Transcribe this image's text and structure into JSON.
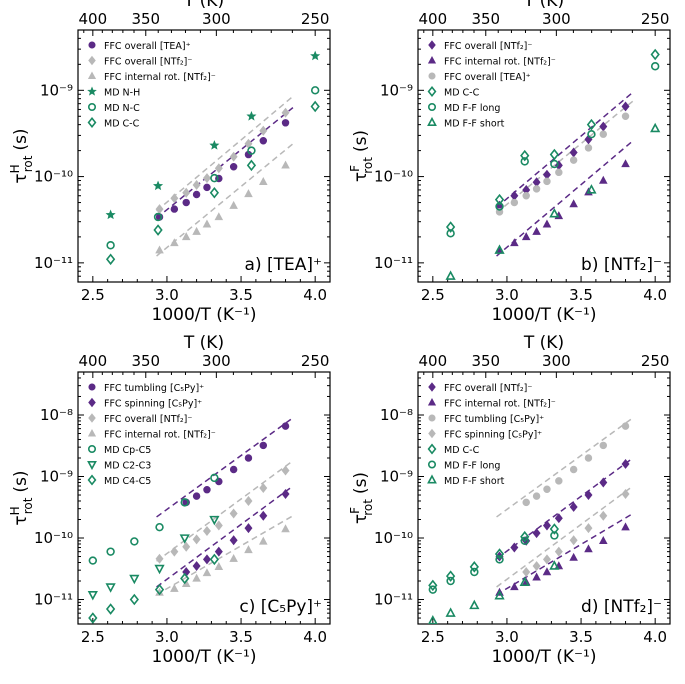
{
  "colors": {
    "purple": "#5b2a86",
    "gray": "#b8b8b8",
    "green": "#1a8a63"
  },
  "axes_text": {
    "x_bottom_title": "1000/T (K⁻¹)",
    "x_top_title": "T (K)",
    "y_title_H_sup": "H",
    "y_title_F_sup": "F",
    "y_title_base": "τ",
    "y_title_sub": "rot",
    "y_title_unit": "(s)"
  },
  "chart_data": [
    {
      "id": "a",
      "type": "scatter",
      "title": "a) [TEA]⁺",
      "xlabel": "1000/T (K⁻¹)",
      "ylabel": "τ_rot^H (s)",
      "x2label": "T (K)",
      "xlim": [
        2.4,
        4.1
      ],
      "ylim": [
        6e-12,
        5e-09
      ],
      "xticks": [
        "2.5",
        "3.0",
        "3.5",
        "4.0"
      ],
      "xtick_values": [
        2.5,
        3.0,
        3.5,
        4.0
      ],
      "yticks": [
        "10⁻¹¹",
        "10⁻¹⁰",
        "10⁻⁹"
      ],
      "ytick_values": [
        1e-11,
        1e-10,
        1e-09
      ],
      "top_ticks": [
        "400",
        "350",
        "300",
        "250"
      ],
      "top_tick_values": [
        400,
        350,
        300,
        250
      ],
      "legend": "top-left",
      "series": [
        {
          "name": "FFC overall [TEA]⁺",
          "marker": "circle",
          "color": "purple",
          "filled": true,
          "x": [
            2.95,
            3.05,
            3.13,
            3.2,
            3.27,
            3.35,
            3.45,
            3.55,
            3.65,
            3.8
          ],
          "y": [
            3.4e-11,
            4.2e-11,
            5e-11,
            6.2e-11,
            7.5e-11,
            9.5e-11,
            1.3e-10,
            1.8e-10,
            2.6e-10,
            4.2e-10
          ],
          "fit": {
            "x": [
              2.93,
              3.85
            ],
            "y": [
              3.3e-11,
              6.3e-10
            ]
          }
        },
        {
          "name": "FFC overall [NTf₂]⁻",
          "marker": "diamond",
          "color": "gray",
          "filled": true,
          "x": [
            2.95,
            3.05,
            3.13,
            3.2,
            3.27,
            3.35,
            3.45,
            3.55,
            3.65,
            3.8
          ],
          "y": [
            4.2e-11,
            5.6e-11,
            6.5e-11,
            8e-11,
            9.6e-11,
            1.25e-10,
            1.7e-10,
            2.4e-10,
            3.4e-10,
            5.5e-10
          ],
          "fit": {
            "x": [
              2.93,
              3.85
            ],
            "y": [
              4e-11,
              8.5e-10
            ]
          }
        },
        {
          "name": "FFC internal rot. [NTf₂]⁻",
          "marker": "triangle",
          "color": "gray",
          "filled": true,
          "x": [
            2.95,
            3.05,
            3.13,
            3.2,
            3.27,
            3.35,
            3.45,
            3.55,
            3.65,
            3.8
          ],
          "y": [
            1.4e-11,
            1.7e-11,
            2e-11,
            2.3e-11,
            2.8e-11,
            3.4e-11,
            4.6e-11,
            6.3e-11,
            8.7e-11,
            1.35e-10
          ],
          "fit": {
            "x": [
              2.93,
              3.85
            ],
            "y": [
              1.2e-11,
              2.4e-10
            ]
          }
        },
        {
          "name": "MD N-H",
          "marker": "star",
          "color": "green",
          "filled": true,
          "x": [
            2.62,
            2.94,
            3.32,
            3.57,
            4.0
          ],
          "y": [
            3.6e-11,
            7.8e-11,
            2.3e-10,
            5e-10,
            2.5e-09
          ]
        },
        {
          "name": "MD N-C",
          "marker": "circle",
          "color": "green",
          "filled": false,
          "x": [
            2.62,
            2.94,
            3.32,
            3.57,
            4.0
          ],
          "y": [
            1.6e-11,
            3.4e-11,
            9.6e-11,
            2e-10,
            1e-09
          ]
        },
        {
          "name": "MD C-C",
          "marker": "diamond",
          "color": "green",
          "filled": false,
          "x": [
            2.62,
            2.94,
            3.32,
            3.57,
            4.0
          ],
          "y": [
            1.1e-11,
            2.4e-11,
            6.5e-11,
            1.35e-10,
            6.5e-10
          ]
        }
      ]
    },
    {
      "id": "b",
      "type": "scatter",
      "title": "b) [NTf₂]⁻",
      "xlabel": "1000/T (K⁻¹)",
      "ylabel": "τ_rot^F (s)",
      "x2label": "T (K)",
      "xlim": [
        2.4,
        4.1
      ],
      "ylim": [
        6e-12,
        5e-09
      ],
      "xticks": [
        "2.5",
        "3.0",
        "3.5",
        "4.0"
      ],
      "xtick_values": [
        2.5,
        3.0,
        3.5,
        4.0
      ],
      "yticks": [
        "10⁻¹¹",
        "10⁻¹⁰",
        "10⁻⁹"
      ],
      "ytick_values": [
        1e-11,
        1e-10,
        1e-09
      ],
      "top_ticks": [
        "400",
        "350",
        "300",
        "250"
      ],
      "top_tick_values": [
        400,
        350,
        300,
        250
      ],
      "legend": "top-left",
      "series": [
        {
          "name": "FFC overall [NTf₂]⁻",
          "marker": "diamond",
          "color": "purple",
          "filled": true,
          "x": [
            2.95,
            3.05,
            3.13,
            3.2,
            3.27,
            3.35,
            3.45,
            3.55,
            3.65,
            3.8
          ],
          "y": [
            4.6e-11,
            6e-11,
            7e-11,
            8.6e-11,
            1.05e-10,
            1.35e-10,
            1.9e-10,
            2.7e-10,
            3.8e-10,
            6.5e-10
          ],
          "fit": {
            "x": [
              2.93,
              3.85
            ],
            "y": [
              4.4e-11,
              9.5e-10
            ]
          }
        },
        {
          "name": "FFC internal rot. [NTf₂]⁻",
          "marker": "triangle",
          "color": "purple",
          "filled": true,
          "x": [
            2.95,
            3.05,
            3.13,
            3.2,
            3.27,
            3.35,
            3.45,
            3.55,
            3.65,
            3.8
          ],
          "y": [
            1.4e-11,
            1.7e-11,
            2e-11,
            2.3e-11,
            2.8e-11,
            3.5e-11,
            4.8e-11,
            6.6e-11,
            9e-11,
            1.4e-10
          ],
          "fit": {
            "x": [
              2.93,
              3.85
            ],
            "y": [
              1.2e-11,
              2.6e-10
            ]
          }
        },
        {
          "name": "FFC overall [TEA]⁺",
          "marker": "circle",
          "color": "gray",
          "filled": true,
          "x": [
            2.95,
            3.05,
            3.13,
            3.2,
            3.27,
            3.35,
            3.45,
            3.55,
            3.65,
            3.8
          ],
          "y": [
            3.9e-11,
            5e-11,
            6e-11,
            7.2e-11,
            8.8e-11,
            1.12e-10,
            1.55e-10,
            2.15e-10,
            3.1e-10,
            5e-10
          ],
          "fit": {
            "x": [
              2.93,
              3.85
            ],
            "y": [
              3.8e-11,
              7.5e-10
            ]
          }
        },
        {
          "name": "MD C-C",
          "marker": "diamond",
          "color": "green",
          "filled": false,
          "x": [
            2.62,
            2.95,
            3.12,
            3.32,
            3.57,
            4.0
          ],
          "y": [
            2.6e-11,
            5.4e-11,
            1.75e-10,
            1.8e-10,
            4e-10,
            2.6e-09
          ]
        },
        {
          "name": "MD F-F long",
          "marker": "circle",
          "color": "green",
          "filled": false,
          "x": [
            2.62,
            2.95,
            3.12,
            3.32,
            3.57,
            4.0
          ],
          "y": [
            2.2e-11,
            4.5e-11,
            1.5e-10,
            1.4e-10,
            3.1e-10,
            1.9e-09
          ]
        },
        {
          "name": "MD F-F short",
          "marker": "triangle",
          "color": "green",
          "filled": false,
          "x": [
            2.62,
            2.95,
            3.32,
            3.57,
            4.0
          ],
          "y": [
            7e-12,
            1.4e-11,
            3.7e-11,
            7e-11,
            3.6e-10
          ]
        }
      ]
    },
    {
      "id": "c",
      "type": "scatter",
      "title": "c) [C₅Py]⁺",
      "xlabel": "1000/T (K⁻¹)",
      "ylabel": "τ_rot^H (s)",
      "x2label": "T (K)",
      "xlim": [
        2.4,
        4.1
      ],
      "ylim": [
        4e-12,
        5e-08
      ],
      "xticks": [
        "2.5",
        "3.0",
        "3.5",
        "4.0"
      ],
      "xtick_values": [
        2.5,
        3.0,
        3.5,
        4.0
      ],
      "yticks": [
        "10⁻¹¹",
        "10⁻¹⁰",
        "10⁻⁹",
        "10⁻⁸"
      ],
      "ytick_values": [
        1e-11,
        1e-10,
        1e-09,
        1e-08
      ],
      "top_ticks": [
        "400",
        "350",
        "300",
        "250"
      ],
      "top_tick_values": [
        400,
        350,
        300,
        250
      ],
      "legend": "top-left",
      "series": [
        {
          "name": "FFC tumbling [C₅Py]⁺",
          "marker": "circle",
          "color": "purple",
          "filled": true,
          "x": [
            3.13,
            3.2,
            3.27,
            3.35,
            3.45,
            3.55,
            3.65,
            3.8
          ],
          "y": [
            3.8e-10,
            4.8e-10,
            6.1e-10,
            8.3e-10,
            1.3e-09,
            2e-09,
            3.2e-09,
            6.6e-09
          ],
          "fit": {
            "x": [
              2.93,
              3.85
            ],
            "y": [
              2.2e-10,
              9e-09
            ]
          }
        },
        {
          "name": "FFC spinning [C₅Py]⁺",
          "marker": "diamond",
          "color": "purple",
          "filled": true,
          "x": [
            3.13,
            3.2,
            3.27,
            3.35,
            3.45,
            3.55,
            3.65,
            3.8
          ],
          "y": [
            2.8e-11,
            3.5e-11,
            4.5e-11,
            6e-11,
            9.2e-11,
            1.45e-10,
            2.3e-10,
            5.2e-10
          ],
          "fit": {
            "x": [
              2.93,
              3.85
            ],
            "y": [
              1.6e-11,
              7e-10
            ]
          }
        },
        {
          "name": "FFC overall [NTf₂]⁻",
          "marker": "diamond",
          "color": "gray",
          "filled": true,
          "x": [
            2.95,
            3.05,
            3.13,
            3.2,
            3.27,
            3.35,
            3.45,
            3.55,
            3.65,
            3.8
          ],
          "y": [
            4.6e-11,
            6e-11,
            7.2e-11,
            9.5e-11,
            1.3e-10,
            1.6e-10,
            2.5e-10,
            4e-10,
            6.5e-10,
            1.25e-09
          ],
          "fit": {
            "x": [
              2.93,
              3.85
            ],
            "y": [
              4.2e-11,
              1.8e-09
            ]
          }
        },
        {
          "name": "FFC internal rot. [NTf₂]⁻",
          "marker": "triangle",
          "color": "gray",
          "filled": true,
          "x": [
            2.95,
            3.05,
            3.13,
            3.2,
            3.27,
            3.35,
            3.45,
            3.55,
            3.65,
            3.8
          ],
          "y": [
            1.3e-11,
            1.5e-11,
            1.8e-11,
            2.2e-11,
            2.7e-11,
            3.4e-11,
            4.6e-11,
            6.4e-11,
            8.8e-11,
            1.4e-10
          ],
          "fit": {
            "x": [
              2.93,
              3.85
            ],
            "y": [
              1.2e-11,
              2.3e-10
            ]
          }
        },
        {
          "name": "MD Cp-C5",
          "marker": "circle",
          "color": "green",
          "filled": false,
          "x": [
            2.5,
            2.62,
            2.78,
            2.95,
            3.12,
            3.32
          ],
          "y": [
            4.3e-11,
            6e-11,
            8.8e-11,
            1.5e-10,
            3.8e-10,
            9.5e-10
          ]
        },
        {
          "name": "MD C2-C3",
          "marker": "triangle-down",
          "color": "green",
          "filled": false,
          "x": [
            2.5,
            2.62,
            2.78,
            2.95,
            3.12,
            3.32
          ],
          "y": [
            1.2e-11,
            1.6e-11,
            2.2e-11,
            3.2e-11,
            1e-10,
            2e-10
          ]
        },
        {
          "name": "MD C4-C5",
          "marker": "diamond",
          "color": "green",
          "filled": false,
          "x": [
            2.5,
            2.62,
            2.78,
            2.95,
            3.12,
            3.32
          ],
          "y": [
            5e-12,
            7e-12,
            1e-11,
            1.45e-11,
            2.2e-11,
            4.5e-11
          ]
        }
      ]
    },
    {
      "id": "d",
      "type": "scatter",
      "title": "d) [NTf₂]⁻",
      "xlabel": "1000/T (K⁻¹)",
      "ylabel": "τ_rot^F (s)",
      "x2label": "T (K)",
      "xlim": [
        2.4,
        4.1
      ],
      "ylim": [
        4e-12,
        5e-08
      ],
      "xticks": [
        "2.5",
        "3.0",
        "3.5",
        "4.0"
      ],
      "xtick_values": [
        2.5,
        3.0,
        3.5,
        4.0
      ],
      "yticks": [
        "10⁻¹¹",
        "10⁻¹⁰",
        "10⁻⁹",
        "10⁻⁸"
      ],
      "ytick_values": [
        1e-11,
        1e-10,
        1e-09,
        1e-08
      ],
      "top_ticks": [
        "400",
        "350",
        "300",
        "250"
      ],
      "top_tick_values": [
        400,
        350,
        300,
        250
      ],
      "legend": "top-left",
      "series": [
        {
          "name": "FFC overall [NTf₂]⁻",
          "marker": "diamond",
          "color": "purple",
          "filled": true,
          "x": [
            2.95,
            3.05,
            3.13,
            3.2,
            3.27,
            3.35,
            3.45,
            3.55,
            3.65,
            3.8
          ],
          "y": [
            5e-11,
            7e-11,
            9e-11,
            1.2e-10,
            1.6e-10,
            2.1e-10,
            3.2e-10,
            5e-10,
            8e-10,
            1.6e-09
          ],
          "fit": {
            "x": [
              2.93,
              3.85
            ],
            "y": [
              4.6e-11,
              2e-09
            ]
          }
        },
        {
          "name": "FFC internal rot. [NTf₂]⁻",
          "marker": "triangle",
          "color": "purple",
          "filled": true,
          "x": [
            2.95,
            3.05,
            3.13,
            3.2,
            3.27,
            3.35,
            3.45,
            3.55,
            3.65,
            3.8
          ],
          "y": [
            1.3e-11,
            1.6e-11,
            1.9e-11,
            2.3e-11,
            2.8e-11,
            3.5e-11,
            4.8e-11,
            6.6e-11,
            9e-11,
            1.5e-10
          ],
          "fit": {
            "x": [
              2.93,
              3.85
            ],
            "y": [
              1.2e-11,
              2.5e-10
            ]
          }
        },
        {
          "name": "FFC tumbling [C₅Py]⁺",
          "marker": "circle",
          "color": "gray",
          "filled": true,
          "x": [
            3.13,
            3.2,
            3.27,
            3.35,
            3.45,
            3.55,
            3.65,
            3.8
          ],
          "y": [
            3.8e-10,
            4.8e-10,
            6.2e-10,
            8.5e-10,
            1.3e-09,
            2e-09,
            3.2e-09,
            6.6e-09
          ],
          "fit": {
            "x": [
              2.93,
              3.85
            ],
            "y": [
              2.2e-10,
              9e-09
            ]
          }
        },
        {
          "name": "FFC spinning [C₅Py]⁺",
          "marker": "diamond",
          "color": "gray",
          "filled": true,
          "x": [
            3.13,
            3.2,
            3.27,
            3.35,
            3.45,
            3.55,
            3.65,
            3.8
          ],
          "y": [
            2.8e-11,
            3.5e-11,
            4.5e-11,
            6e-11,
            9.2e-11,
            1.45e-10,
            2.3e-10,
            5.2e-10
          ],
          "fit": {
            "x": [
              2.93,
              3.85
            ],
            "y": [
              1.6e-11,
              7e-10
            ]
          }
        },
        {
          "name": "MD C-C",
          "marker": "diamond",
          "color": "green",
          "filled": false,
          "x": [
            2.5,
            2.62,
            2.78,
            2.95,
            3.12,
            3.32
          ],
          "y": [
            1.7e-11,
            2.4e-11,
            3.4e-11,
            5.5e-11,
            1.05e-10,
            1.4e-10
          ]
        },
        {
          "name": "MD F-F long",
          "marker": "circle",
          "color": "green",
          "filled": false,
          "x": [
            2.5,
            2.62,
            2.78,
            2.95,
            3.12,
            3.32
          ],
          "y": [
            1.45e-11,
            2e-11,
            2.8e-11,
            4.5e-11,
            9e-11,
            1.1e-10
          ]
        },
        {
          "name": "MD F-F short",
          "marker": "triangle",
          "color": "green",
          "filled": false,
          "x": [
            2.5,
            2.62,
            2.78,
            2.95,
            3.12,
            3.32
          ],
          "y": [
            4.5e-12,
            6e-12,
            8e-12,
            1.15e-11,
            1.9e-11,
            3.5e-11
          ]
        }
      ]
    }
  ]
}
